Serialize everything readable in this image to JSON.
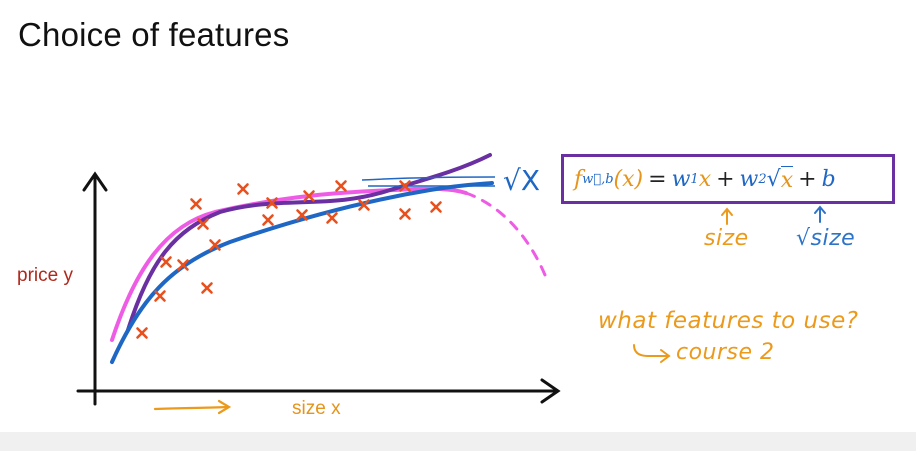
{
  "slide": {
    "title": "Choice of features"
  },
  "plot": {
    "y_axis_label": "price y",
    "x_axis_label": "size x",
    "sqrt_x_label": "√X",
    "data_points_count_marker": "x",
    "colors": {
      "axis": "#111111",
      "data_points": "#e8501e",
      "sqrt_fit": "#1f67c4",
      "poly_fit": "#6a2fa0",
      "pink_fit": "#ee5ce6",
      "annotation_orange": "#ec9a1c",
      "annotation_blue": "#2d74c8"
    }
  },
  "formula": {
    "f": "f",
    "f_subscript": "w⃗,b",
    "x1": "(x)",
    "equals": "=",
    "w1": "w",
    "w1_sub": "1",
    "x": "x",
    "plus1": "+",
    "w2": "w",
    "w2_sub": "2",
    "sqrt_symbol": "√",
    "sqrt_arg": "x",
    "plus2": "+",
    "b": "b"
  },
  "annotations": {
    "size": "size",
    "sqrt_size": "√size",
    "question": "what features to use?",
    "course": "course 2"
  }
}
